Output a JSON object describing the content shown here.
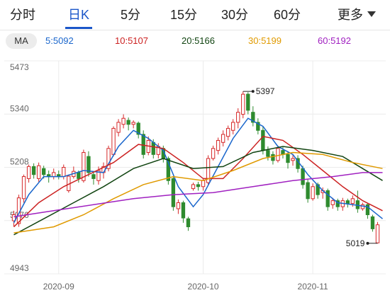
{
  "tabs": [
    {
      "label": "分时"
    },
    {
      "label": "日K"
    },
    {
      "label": "5分"
    },
    {
      "label": "15分"
    },
    {
      "label": "30分"
    },
    {
      "label": "60分"
    }
  ],
  "active_tab": "日K",
  "more_label": "更多",
  "ma_selector_label": "MA",
  "ma_values": [
    {
      "label": "5:5092",
      "color": "#1a66cc"
    },
    {
      "label": "10:5107",
      "color": "#cc2222"
    },
    {
      "label": "20:5166",
      "color": "#114411"
    },
    {
      "label": "30:5199",
      "color": "#e09a00"
    },
    {
      "label": "60:5192",
      "color": "#a020c0"
    }
  ],
  "colors": {
    "up": "#d62728",
    "down": "#2e8b2e",
    "grid": "#ececec",
    "accent": "#1a56c9"
  },
  "chart_data": {
    "type": "candlestick",
    "y_ticks": [
      "5473",
      "5340",
      "5208",
      "5076",
      "4943"
    ],
    "ylim": [
      4943,
      5473
    ],
    "x_ticks": [
      {
        "label": "2020-09",
        "index": 9
      },
      {
        "label": "2020-10",
        "index": 38
      },
      {
        "label": "2020-11",
        "index": 60
      }
    ],
    "annotations": [
      {
        "label": "5397",
        "index": 46,
        "price": 5397,
        "side": "right"
      },
      {
        "label": "5019",
        "index": 73,
        "price": 5019,
        "side": "left"
      }
    ],
    "candles": [
      [
        5075,
        5090,
        5060,
        5100
      ],
      [
        5068,
        5132,
        5060,
        5140
      ],
      [
        5130,
        5185,
        5120,
        5190
      ],
      [
        5180,
        5210,
        5170,
        5215
      ],
      [
        5210,
        5190,
        5180,
        5218
      ],
      [
        5180,
        5212,
        5172,
        5220
      ],
      [
        5205,
        5190,
        5180,
        5212
      ],
      [
        5190,
        5185,
        5170,
        5200
      ],
      [
        5185,
        5195,
        5178,
        5205
      ],
      [
        5190,
        5185,
        5178,
        5200
      ],
      [
        5185,
        5208,
        5178,
        5215
      ],
      [
        5150,
        5186,
        5145,
        5190
      ],
      [
        5185,
        5198,
        5180,
        5210
      ],
      [
        5195,
        5180,
        5170,
        5200
      ],
      [
        5175,
        5245,
        5170,
        5252
      ],
      [
        5235,
        5195,
        5185,
        5248
      ],
      [
        5190,
        5180,
        5165,
        5198
      ],
      [
        5175,
        5200,
        5165,
        5210
      ],
      [
        5195,
        5210,
        5180,
        5220
      ],
      [
        5205,
        5255,
        5198,
        5262
      ],
      [
        5240,
        5305,
        5235,
        5310
      ],
      [
        5295,
        5320,
        5285,
        5328
      ],
      [
        5315,
        5330,
        5305,
        5340
      ],
      [
        5325,
        5315,
        5300,
        5332
      ],
      [
        5315,
        5320,
        5305,
        5325
      ],
      [
        5318,
        5290,
        5280,
        5322
      ],
      [
        5290,
        5240,
        5230,
        5300
      ],
      [
        5245,
        5275,
        5238,
        5285
      ],
      [
        5270,
        5240,
        5230,
        5278
      ],
      [
        5240,
        5260,
        5230,
        5268
      ],
      [
        5255,
        5230,
        5220,
        5262
      ],
      [
        5230,
        5175,
        5165,
        5235
      ],
      [
        5180,
        5110,
        5100,
        5185
      ],
      [
        5105,
        5120,
        5092,
        5128
      ],
      [
        5120,
        5082,
        5070,
        5125
      ],
      [
        5080,
        5060,
        5050,
        5085
      ],
      [
        5155,
        5165,
        5150,
        5170
      ],
      [
        5165,
        5160,
        5150,
        5172
      ],
      [
        5160,
        5175,
        5150,
        5180
      ],
      [
        5170,
        5230,
        5165,
        5238
      ],
      [
        5230,
        5255,
        5225,
        5262
      ],
      [
        5250,
        5275,
        5240,
        5282
      ],
      [
        5270,
        5290,
        5260,
        5300
      ],
      [
        5285,
        5305,
        5275,
        5312
      ],
      [
        5300,
        5320,
        5290,
        5328
      ],
      [
        5320,
        5345,
        5305,
        5355
      ],
      [
        5340,
        5390,
        5330,
        5397
      ],
      [
        5390,
        5350,
        5340,
        5395
      ],
      [
        5345,
        5320,
        5310,
        5360
      ],
      [
        5320,
        5300,
        5290,
        5330
      ],
      [
        5300,
        5250,
        5240,
        5310
      ],
      [
        5250,
        5235,
        5225,
        5260
      ],
      [
        5240,
        5225,
        5215,
        5248
      ],
      [
        5225,
        5255,
        5220,
        5262
      ],
      [
        5250,
        5240,
        5230,
        5258
      ],
      [
        5240,
        5220,
        5205,
        5248
      ],
      [
        5225,
        5230,
        5212,
        5240
      ],
      [
        5230,
        5205,
        5195,
        5238
      ],
      [
        5205,
        5165,
        5155,
        5212
      ],
      [
        5170,
        5130,
        5120,
        5178
      ],
      [
        5130,
        5160,
        5125,
        5168
      ],
      [
        5165,
        5140,
        5130,
        5170
      ],
      [
        5145,
        5150,
        5130,
        5158
      ],
      [
        5150,
        5110,
        5100,
        5155
      ],
      [
        5115,
        5125,
        5105,
        5132
      ],
      [
        5125,
        5110,
        5100,
        5130
      ],
      [
        5110,
        5125,
        5100,
        5132
      ],
      [
        5125,
        5118,
        5108,
        5130
      ],
      [
        5118,
        5130,
        5110,
        5138
      ],
      [
        5125,
        5105,
        5095,
        5150
      ],
      [
        5105,
        5115,
        5100,
        5120
      ],
      [
        5115,
        5090,
        5080,
        5120
      ],
      [
        5085,
        5055,
        5048,
        5090
      ],
      [
        5020,
        5065,
        5019,
        5072
      ]
    ],
    "ma_series": [
      {
        "name": "5",
        "color": "#1a66cc",
        "points": [
          [
            0,
            5070
          ],
          [
            3,
            5140
          ],
          [
            6,
            5185
          ],
          [
            10,
            5185
          ],
          [
            14,
            5200
          ],
          [
            18,
            5195
          ],
          [
            21,
            5260
          ],
          [
            24,
            5300
          ],
          [
            27,
            5280
          ],
          [
            30,
            5250
          ],
          [
            33,
            5160
          ],
          [
            36,
            5110
          ],
          [
            38,
            5140
          ],
          [
            41,
            5210
          ],
          [
            44,
            5280
          ],
          [
            47,
            5330
          ],
          [
            50,
            5310
          ],
          [
            53,
            5260
          ],
          [
            56,
            5240
          ],
          [
            59,
            5190
          ],
          [
            62,
            5150
          ],
          [
            65,
            5120
          ],
          [
            68,
            5115
          ],
          [
            71,
            5110
          ],
          [
            74,
            5080
          ]
        ]
      },
      {
        "name": "10",
        "color": "#cc2222",
        "points": [
          [
            0,
            5060
          ],
          [
            5,
            5120
          ],
          [
            10,
            5160
          ],
          [
            15,
            5190
          ],
          [
            20,
            5220
          ],
          [
            25,
            5265
          ],
          [
            30,
            5255
          ],
          [
            34,
            5220
          ],
          [
            38,
            5180
          ],
          [
            42,
            5180
          ],
          [
            46,
            5230
          ],
          [
            50,
            5285
          ],
          [
            54,
            5275
          ],
          [
            58,
            5240
          ],
          [
            62,
            5200
          ],
          [
            66,
            5160
          ],
          [
            70,
            5125
          ],
          [
            74,
            5100
          ]
        ]
      },
      {
        "name": "20",
        "color": "#114411",
        "points": [
          [
            0,
            5040
          ],
          [
            6,
            5080
          ],
          [
            12,
            5120
          ],
          [
            18,
            5160
          ],
          [
            24,
            5205
          ],
          [
            30,
            5230
          ],
          [
            36,
            5205
          ],
          [
            42,
            5210
          ],
          [
            48,
            5245
          ],
          [
            54,
            5260
          ],
          [
            60,
            5250
          ],
          [
            66,
            5235
          ],
          [
            70,
            5205
          ],
          [
            74,
            5175
          ]
        ]
      },
      {
        "name": "30",
        "color": "#e09a00",
        "points": [
          [
            0,
            5045
          ],
          [
            8,
            5060
          ],
          [
            14,
            5090
          ],
          [
            20,
            5130
          ],
          [
            26,
            5165
          ],
          [
            32,
            5185
          ],
          [
            38,
            5175
          ],
          [
            44,
            5200
          ],
          [
            50,
            5230
          ],
          [
            56,
            5245
          ],
          [
            62,
            5240
          ],
          [
            68,
            5220
          ],
          [
            74,
            5205
          ]
        ]
      },
      {
        "name": "60",
        "color": "#a020c0",
        "points": [
          [
            0,
            5085
          ],
          [
            8,
            5100
          ],
          [
            16,
            5115
          ],
          [
            24,
            5130
          ],
          [
            32,
            5140
          ],
          [
            40,
            5145
          ],
          [
            48,
            5160
          ],
          [
            56,
            5175
          ],
          [
            64,
            5185
          ],
          [
            70,
            5195
          ],
          [
            74,
            5195
          ]
        ]
      }
    ]
  }
}
